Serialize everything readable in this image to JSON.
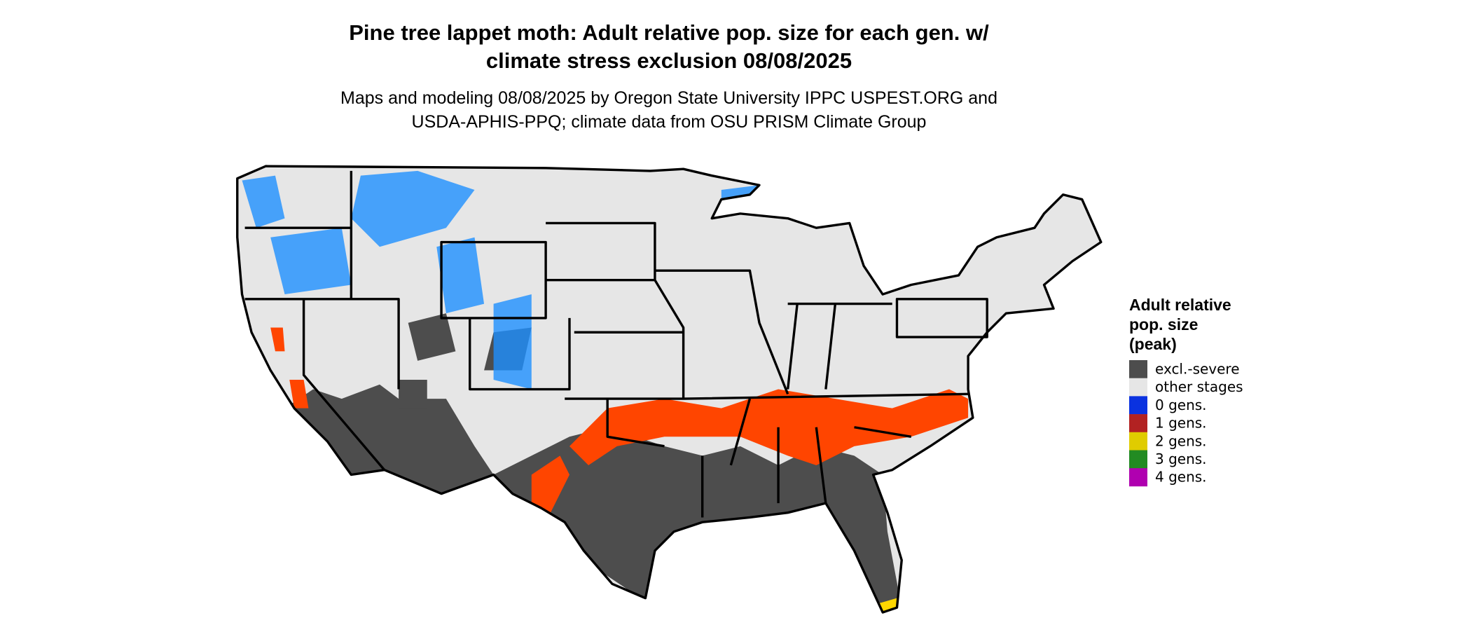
{
  "title": [
    "Pine tree lappet moth: Adult relative pop. size for each gen. w/",
    "climate stress exclusion 08/08/2025"
  ],
  "subtitle": [
    "Maps and modeling 08/08/2025 by Oregon State University IPPC USPEST.ORG and",
    "USDA-APHIS-PPQ; climate data from OSU PRISM Climate Group"
  ],
  "legend": {
    "title": [
      "Adult relative",
      "pop. size",
      "(peak)"
    ],
    "items": [
      {
        "label": "excl.-severe",
        "color": "#4d4d4d"
      },
      {
        "label": "other stages",
        "color": "#e6e6e6"
      },
      {
        "label": "0 gens.",
        "color": "#0a32e0"
      },
      {
        "label": "1 gens.",
        "color": "#b22222"
      },
      {
        "label": "2 gens.",
        "color": "#e0cc00"
      },
      {
        "label": "3 gens.",
        "color": "#228b22"
      },
      {
        "label": "4 gens.",
        "color": "#b000b0"
      }
    ]
  }
}
